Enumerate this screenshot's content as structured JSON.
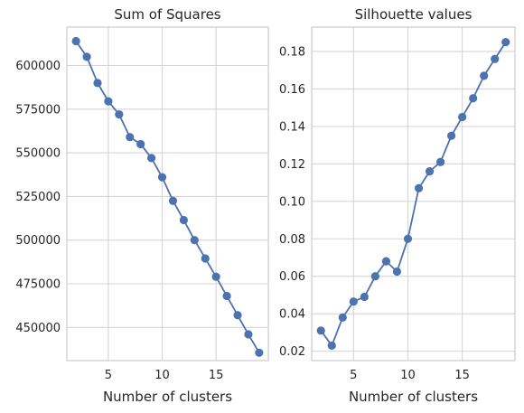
{
  "chart_data": [
    {
      "type": "line",
      "title": "Sum of Squares",
      "xlabel": "Number of clusters",
      "ylabel": "",
      "grid": true,
      "marker": "circle",
      "line_color": "#4c72b0",
      "xlim": [
        1.15,
        19.85
      ],
      "ylim": [
        431000,
        622000
      ],
      "xticks": [
        5,
        10,
        15
      ],
      "xtick_labels": [
        "5",
        "10",
        "15"
      ],
      "yticks": [
        450000,
        475000,
        500000,
        525000,
        550000,
        575000,
        600000
      ],
      "ytick_labels": [
        "450000",
        "475000",
        "500000",
        "525000",
        "550000",
        "575000",
        "600000"
      ],
      "x": [
        2,
        3,
        4,
        5,
        6,
        7,
        8,
        9,
        10,
        11,
        12,
        13,
        14,
        15,
        16,
        17,
        18,
        19
      ],
      "y": [
        614000,
        605000,
        590000,
        579500,
        572000,
        559000,
        555000,
        547000,
        536000,
        522500,
        511500,
        500000,
        489500,
        479000,
        468000,
        457000,
        446000,
        435500
      ]
    },
    {
      "type": "line",
      "title": "Silhouette values",
      "xlabel": "Number of clusters",
      "ylabel": "",
      "grid": true,
      "marker": "circle",
      "line_color": "#4c72b0",
      "xlim": [
        1.15,
        19.85
      ],
      "ylim": [
        0.015,
        0.193
      ],
      "xticks": [
        5,
        10,
        15
      ],
      "xtick_labels": [
        "5",
        "10",
        "15"
      ],
      "yticks": [
        0.02,
        0.04,
        0.06,
        0.08,
        0.1,
        0.12,
        0.14,
        0.16,
        0.18
      ],
      "ytick_labels": [
        "0.02",
        "0.04",
        "0.06",
        "0.08",
        "0.10",
        "0.12",
        "0.14",
        "0.16",
        "0.18"
      ],
      "x": [
        2,
        3,
        4,
        5,
        6,
        7,
        8,
        9,
        10,
        11,
        12,
        13,
        14,
        15,
        16,
        17,
        18,
        19
      ],
      "y": [
        0.031,
        0.023,
        0.038,
        0.0465,
        0.049,
        0.06,
        0.068,
        0.0625,
        0.08,
        0.107,
        0.116,
        0.121,
        0.135,
        0.145,
        0.155,
        0.167,
        0.176,
        0.185
      ]
    }
  ]
}
